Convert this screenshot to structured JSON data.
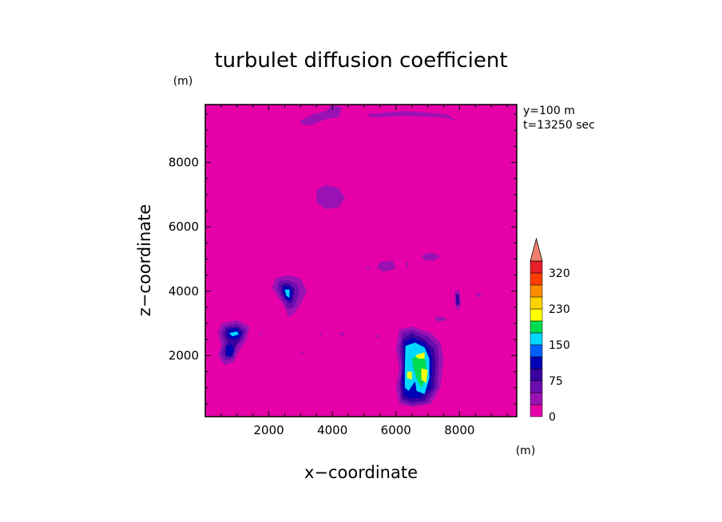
{
  "chart_data": {
    "type": "heatmap",
    "title": "turbulet diffusion coefficient",
    "xlabel": "x−coordinate",
    "ylabel": "z−coordinate",
    "x_unit": "(m)",
    "z_unit": "(m)",
    "xlim": [
      0,
      9800
    ],
    "ylim": [
      100,
      9800
    ],
    "x_ticks": [
      2000,
      4000,
      6000,
      8000
    ],
    "x_tick_labels": [
      "2000",
      "4000",
      "6000",
      "8000"
    ],
    "y_ticks": [
      2000,
      4000,
      6000,
      8000
    ],
    "y_tick_labels": [
      "2000",
      "4000",
      "6000",
      "8000"
    ],
    "annotations": [
      "y=100 m",
      "t=13250 sec"
    ],
    "background_level": 0,
    "colorbar": {
      "levels": [
        0,
        25,
        50,
        75,
        100,
        125,
        150,
        175,
        200,
        230,
        260,
        290,
        320
      ],
      "tick_values": [
        0,
        75,
        150,
        230,
        320
      ],
      "tick_labels": [
        "0",
        "75",
        "150",
        "230",
        "320"
      ],
      "colors": [
        "#e600a8",
        "#9b12b4",
        "#6a0dad",
        "#3a00a0",
        "#0000b4",
        "#0060ff",
        "#00d8ff",
        "#00dc50",
        "#ffff00",
        "#ffd200",
        "#ff8c00",
        "#ff3c00",
        "#e61e28"
      ],
      "extend_max_color": "#f08070"
    },
    "features": [
      {
        "level": 1,
        "points": [
          [
            3000,
            9300
          ],
          [
            3400,
            9500
          ],
          [
            3800,
            9600
          ],
          [
            4000,
            9800
          ],
          [
            4300,
            9700
          ],
          [
            4200,
            9400
          ],
          [
            3800,
            9350
          ],
          [
            3300,
            9150
          ],
          [
            3000,
            9200
          ]
        ]
      },
      {
        "level": 1,
        "points": [
          [
            5100,
            9500
          ],
          [
            6300,
            9600
          ],
          [
            7600,
            9500
          ],
          [
            7900,
            9300
          ],
          [
            7500,
            9400
          ],
          [
            6300,
            9450
          ],
          [
            5200,
            9400
          ]
        ]
      },
      {
        "level": 1,
        "points": [
          [
            3500,
            7150
          ],
          [
            3800,
            7300
          ],
          [
            4200,
            7200
          ],
          [
            4400,
            6900
          ],
          [
            4200,
            6600
          ],
          [
            3800,
            6550
          ],
          [
            3500,
            6750
          ]
        ]
      },
      {
        "level": 1,
        "points": [
          [
            5500,
            4900
          ],
          [
            5900,
            4950
          ],
          [
            6000,
            4700
          ],
          [
            5600,
            4600
          ],
          [
            5400,
            4750
          ]
        ]
      },
      {
        "level": 1,
        "points": [
          [
            6800,
            5100
          ],
          [
            7100,
            5200
          ],
          [
            7400,
            5100
          ],
          [
            7200,
            4950
          ],
          [
            6900,
            4950
          ]
        ]
      },
      {
        "level": 1,
        "points": [
          [
            2200,
            4400
          ],
          [
            2600,
            4500
          ],
          [
            3000,
            4400
          ],
          [
            3200,
            4000
          ],
          [
            3000,
            3600
          ],
          [
            2800,
            3300
          ],
          [
            2600,
            3200
          ],
          [
            2500,
            3500
          ],
          [
            2300,
            3800
          ],
          [
            2100,
            4100
          ]
        ]
      },
      {
        "level": 2,
        "points": [
          [
            2300,
            4300
          ],
          [
            2600,
            4350
          ],
          [
            2900,
            4200
          ],
          [
            2950,
            3900
          ],
          [
            2800,
            3500
          ],
          [
            2600,
            3450
          ],
          [
            2400,
            3800
          ],
          [
            2250,
            4100
          ]
        ]
      },
      {
        "level": 3,
        "points": [
          [
            2400,
            4200
          ],
          [
            2600,
            4250
          ],
          [
            2800,
            4100
          ],
          [
            2800,
            3900
          ],
          [
            2700,
            3600
          ],
          [
            2550,
            3700
          ],
          [
            2400,
            3950
          ]
        ]
      },
      {
        "level": 4,
        "points": [
          [
            2450,
            4150
          ],
          [
            2650,
            4150
          ],
          [
            2750,
            4000
          ],
          [
            2700,
            3700
          ],
          [
            2550,
            3750
          ],
          [
            2450,
            3950
          ]
        ]
      },
      {
        "level": 6,
        "points": [
          [
            2500,
            4050
          ],
          [
            2650,
            4050
          ],
          [
            2650,
            3800
          ],
          [
            2550,
            3850
          ]
        ]
      },
      {
        "level": 1,
        "points": [
          [
            500,
            3000
          ],
          [
            1000,
            3100
          ],
          [
            1400,
            2900
          ],
          [
            1300,
            2500
          ],
          [
            1100,
            2200
          ],
          [
            900,
            1800
          ],
          [
            600,
            1700
          ],
          [
            400,
            2000
          ],
          [
            500,
            2300
          ],
          [
            400,
            2700
          ]
        ]
      },
      {
        "level": 2,
        "points": [
          [
            600,
            2900
          ],
          [
            1000,
            3000
          ],
          [
            1300,
            2800
          ],
          [
            1200,
            2500
          ],
          [
            1000,
            2300
          ],
          [
            900,
            1900
          ],
          [
            600,
            1850
          ],
          [
            500,
            2100
          ],
          [
            600,
            2400
          ],
          [
            500,
            2700
          ]
        ]
      },
      {
        "level": 3,
        "points": [
          [
            650,
            2850
          ],
          [
            1000,
            2900
          ],
          [
            1200,
            2750
          ],
          [
            1100,
            2500
          ],
          [
            950,
            2300
          ],
          [
            850,
            2000
          ],
          [
            650,
            1950
          ],
          [
            600,
            2150
          ],
          [
            700,
            2400
          ],
          [
            600,
            2650
          ]
        ]
      },
      {
        "level": 4,
        "points": [
          [
            700,
            2800
          ],
          [
            1000,
            2850
          ],
          [
            1150,
            2700
          ],
          [
            1050,
            2550
          ],
          [
            850,
            2500
          ],
          [
            700,
            2600
          ]
        ]
      },
      {
        "level": 4,
        "points": [
          [
            650,
            2300
          ],
          [
            850,
            2350
          ],
          [
            900,
            2100
          ],
          [
            800,
            1950
          ],
          [
            650,
            2000
          ]
        ]
      },
      {
        "level": 6,
        "points": [
          [
            750,
            2700
          ],
          [
            1000,
            2750
          ],
          [
            1050,
            2650
          ],
          [
            850,
            2600
          ]
        ]
      },
      {
        "level": 1,
        "points": [
          [
            6100,
            2800
          ],
          [
            6500,
            2900
          ],
          [
            7100,
            2700
          ],
          [
            7400,
            2400
          ],
          [
            7500,
            1900
          ],
          [
            7400,
            1000
          ],
          [
            7100,
            500
          ],
          [
            6500,
            400
          ],
          [
            6100,
            500
          ],
          [
            6000,
            1000
          ],
          [
            6100,
            1600
          ],
          [
            6000,
            2200
          ]
        ]
      },
      {
        "level": 2,
        "points": [
          [
            6200,
            2700
          ],
          [
            6500,
            2800
          ],
          [
            7000,
            2600
          ],
          [
            7300,
            2300
          ],
          [
            7350,
            1900
          ],
          [
            7300,
            1000
          ],
          [
            7000,
            550
          ],
          [
            6500,
            450
          ],
          [
            6150,
            600
          ],
          [
            6100,
            1100
          ],
          [
            6200,
            1600
          ],
          [
            6100,
            2200
          ]
        ]
      },
      {
        "level": 3,
        "points": [
          [
            6200,
            2500
          ],
          [
            6500,
            2700
          ],
          [
            6900,
            2500
          ],
          [
            7200,
            2200
          ],
          [
            7250,
            1800
          ],
          [
            7200,
            1000
          ],
          [
            6900,
            600
          ],
          [
            6500,
            550
          ],
          [
            6200,
            650
          ],
          [
            6150,
            1100
          ],
          [
            6200,
            1700
          ]
        ]
      },
      {
        "level": 4,
        "points": [
          [
            6250,
            2400
          ],
          [
            6500,
            2550
          ],
          [
            6900,
            2400
          ],
          [
            7100,
            2100
          ],
          [
            7150,
            1800
          ],
          [
            7100,
            1000
          ],
          [
            6800,
            700
          ],
          [
            6500,
            650
          ],
          [
            6250,
            750
          ],
          [
            6200,
            1200
          ],
          [
            6250,
            1700
          ]
        ]
      },
      {
        "level": 6,
        "points": [
          [
            6300,
            2300
          ],
          [
            6600,
            2400
          ],
          [
            6900,
            2250
          ],
          [
            7050,
            1900
          ],
          [
            7050,
            1300
          ],
          [
            6900,
            800
          ],
          [
            6650,
            900
          ],
          [
            6600,
            1200
          ],
          [
            6400,
            900
          ],
          [
            6280,
            1000
          ],
          [
            6280,
            1600
          ]
        ]
      },
      {
        "level": 7,
        "points": [
          [
            6500,
            1900
          ],
          [
            6800,
            2050
          ],
          [
            6950,
            1800
          ],
          [
            6950,
            1300
          ],
          [
            6800,
            1000
          ],
          [
            6650,
            1300
          ],
          [
            6550,
            1600
          ]
        ]
      },
      {
        "level": 8,
        "points": [
          [
            6600,
            2000
          ],
          [
            6900,
            2100
          ],
          [
            6900,
            1900
          ],
          [
            6700,
            1900
          ]
        ]
      },
      {
        "level": 8,
        "points": [
          [
            6350,
            1500
          ],
          [
            6500,
            1500
          ],
          [
            6500,
            1250
          ],
          [
            6350,
            1300
          ]
        ]
      },
      {
        "level": 8,
        "points": [
          [
            6800,
            1600
          ],
          [
            7000,
            1550
          ],
          [
            6950,
            1150
          ],
          [
            6800,
            1250
          ]
        ]
      },
      {
        "level": 1,
        "points": [
          [
            7850,
            4000
          ],
          [
            8000,
            4000
          ],
          [
            8050,
            3600
          ],
          [
            7950,
            3400
          ],
          [
            7850,
            3600
          ]
        ]
      },
      {
        "level": 3,
        "points": [
          [
            7880,
            3900
          ],
          [
            7980,
            3900
          ],
          [
            8000,
            3600
          ],
          [
            7900,
            3550
          ]
        ]
      },
      {
        "level": 1,
        "points": [
          [
            8500,
            3950
          ],
          [
            8700,
            3900
          ],
          [
            8600,
            3800
          ]
        ]
      },
      {
        "level": 1,
        "points": [
          [
            4200,
            2700
          ],
          [
            4400,
            2700
          ],
          [
            4300,
            2600
          ]
        ]
      },
      {
        "level": 1,
        "points": [
          [
            3600,
            2700
          ],
          [
            3700,
            2700
          ],
          [
            3650,
            2600
          ]
        ]
      },
      {
        "level": 1,
        "points": [
          [
            1700,
            2700
          ],
          [
            1800,
            2700
          ],
          [
            1750,
            2600
          ]
        ]
      },
      {
        "level": 1,
        "points": [
          [
            3000,
            2100
          ],
          [
            3100,
            2100
          ],
          [
            3050,
            2000
          ]
        ]
      },
      {
        "level": 1,
        "points": [
          [
            7200,
            3200
          ],
          [
            7500,
            3200
          ],
          [
            7600,
            3100
          ],
          [
            7300,
            3050
          ]
        ]
      },
      {
        "level": 1,
        "points": [
          [
            5300,
            2600
          ],
          [
            5500,
            2650
          ],
          [
            5450,
            2550
          ]
        ]
      },
      {
        "level": 1,
        "points": [
          [
            5000,
            4700
          ],
          [
            5200,
            4750
          ],
          [
            5150,
            4650
          ]
        ]
      },
      {
        "level": 1,
        "points": [
          [
            6300,
            4900
          ],
          [
            6400,
            4900
          ],
          [
            6350,
            4700
          ]
        ]
      }
    ]
  }
}
